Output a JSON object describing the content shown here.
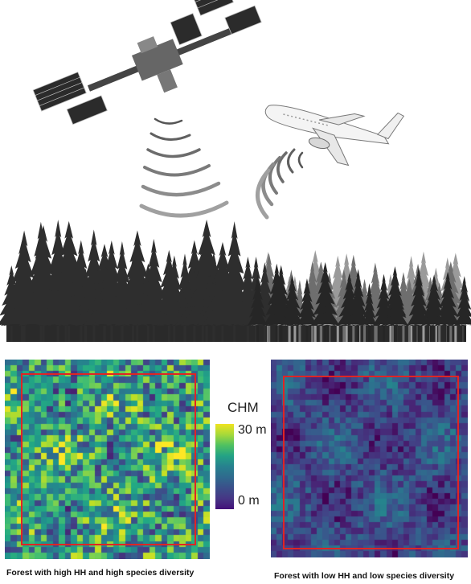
{
  "colorbar": {
    "title": "CHM",
    "max_label": "30 m",
    "min_label": "0 m",
    "colormap": "viridis"
  },
  "panels": [
    {
      "caption": "Forest with high HH and high species diversity",
      "mean_level": 0.55,
      "roi_color": "#e02424"
    },
    {
      "caption": "Forest with low HH and low species diversity",
      "mean_level": 0.22,
      "roi_color": "#e02424"
    }
  ],
  "icons": [
    "satellite-icon",
    "airplane-icon",
    "lidar-pulse-icon",
    "forest-silhouette-icon"
  ]
}
